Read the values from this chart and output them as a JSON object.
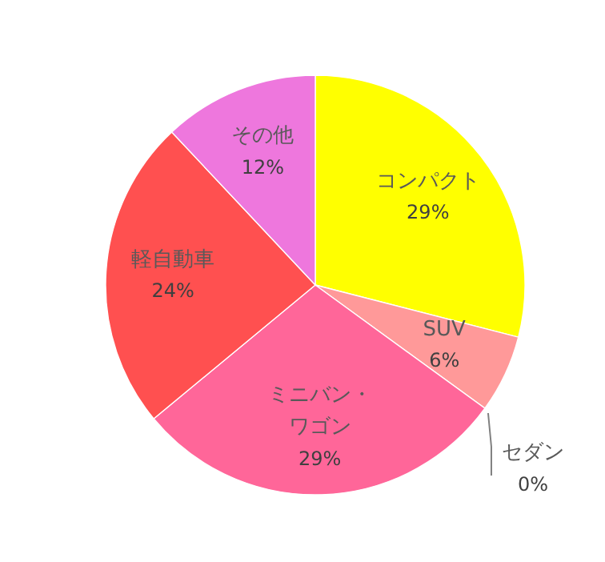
{
  "chart_data": {
    "type": "pie",
    "categories": [
      "コンパクト",
      "SUV",
      "セダン",
      "ミニバン・ワゴン",
      "軽自動車",
      "その他"
    ],
    "values": [
      29,
      6,
      0,
      29,
      24,
      12
    ],
    "colors": [
      "#ffff00",
      "#ff9999",
      "#ff3366",
      "#ff6699",
      "#ff5050",
      "#ee77dd"
    ],
    "value_labels": [
      "29%",
      "6%",
      "0%",
      "29%",
      "24%",
      "12%"
    ],
    "legend": false
  }
}
